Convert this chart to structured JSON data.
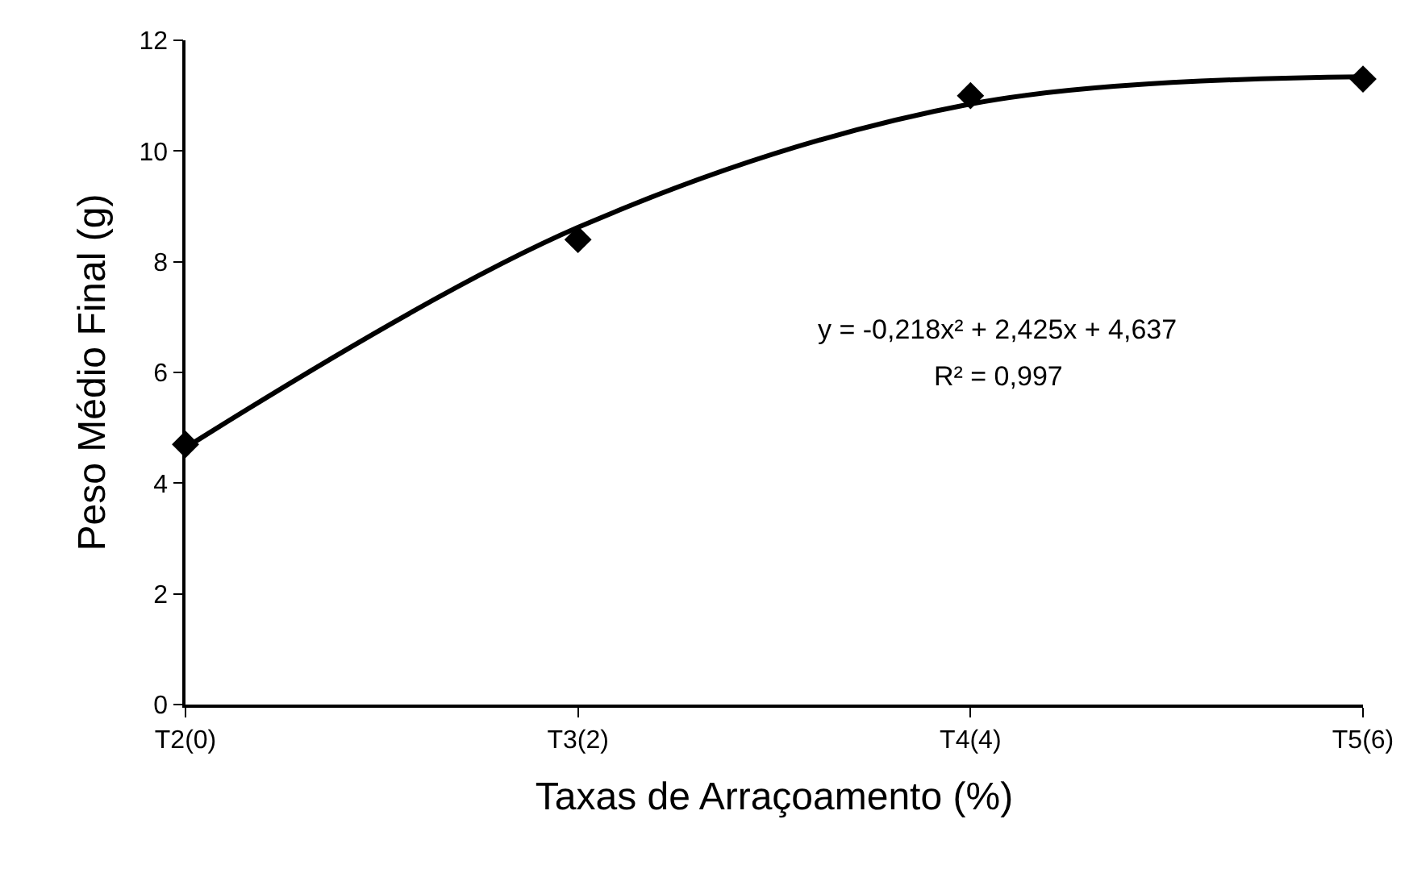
{
  "chart_data": {
    "type": "scatter",
    "xlabel": "Taxas de Arraçoamento (%)",
    "ylabel": "Peso Médio Final (g)",
    "categories": [
      "T2(0)",
      "T3(2)",
      "T4(4)",
      "T5(6)"
    ],
    "ylim": [
      0,
      12
    ],
    "yticks": [
      0,
      2,
      4,
      6,
      8,
      10,
      12
    ],
    "marker": "diamond",
    "series": [
      {
        "color": "#000000",
        "values": [
          4.7,
          8.4,
          11.0,
          11.3
        ]
      },
      {
        "type": "line",
        "color": "#000000",
        "line_style": "solid",
        "marker": "none",
        "values": [
          4.64,
          8.62,
          10.85,
          11.34
        ]
      }
    ],
    "annotations": [
      "y = -0,218x² + 2,425x + 4,637",
      "R² = 0,997"
    ]
  }
}
